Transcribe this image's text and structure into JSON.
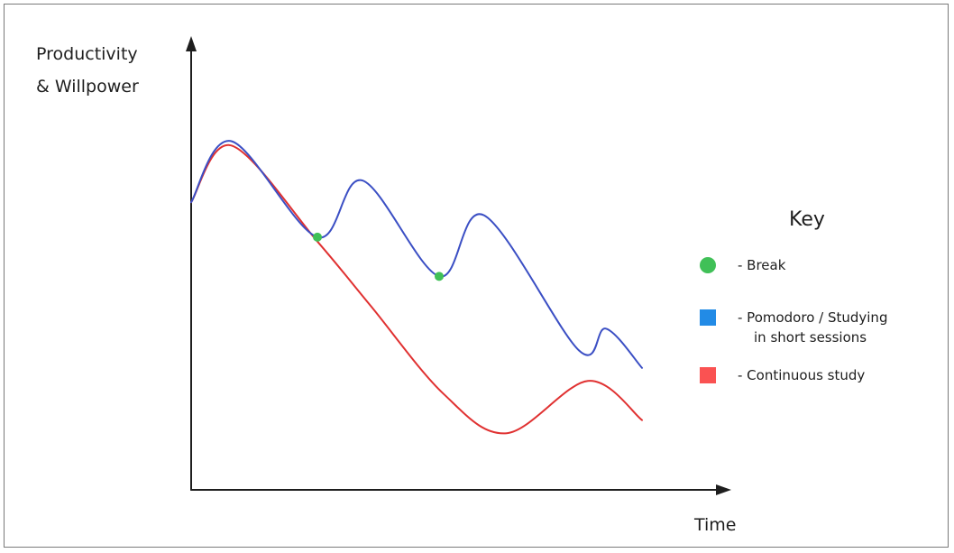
{
  "chart_data": {
    "type": "line",
    "ylabel_lines": [
      "Productivity",
      "& Willpower"
    ],
    "xlabel": "Time",
    "colors": {
      "axis": "#1e1e1e",
      "pomodoro": "#3b4fc4",
      "continuous": "#e03131",
      "break": "#40c057",
      "pomodoro_key": "#228be6",
      "continuous_key": "#fa5252"
    },
    "series": [
      {
        "key": "pomodoro",
        "points": [
          [
            0,
            6.6
          ],
          [
            0.45,
            8.0
          ],
          [
            1.4,
            5.8
          ],
          [
            1.9,
            7.1
          ],
          [
            2.75,
            4.9
          ],
          [
            3.25,
            6.3
          ],
          [
            4.3,
            3.2
          ],
          [
            4.6,
            3.7
          ],
          [
            5.0,
            2.8
          ]
        ]
      },
      {
        "key": "continuous",
        "points": [
          [
            0,
            6.6
          ],
          [
            0.45,
            7.9
          ],
          [
            1.4,
            5.7
          ],
          [
            2.0,
            4.2
          ],
          [
            2.8,
            2.2
          ],
          [
            3.5,
            1.3
          ],
          [
            4.4,
            2.5
          ],
          [
            5.0,
            1.6
          ]
        ]
      }
    ],
    "breaks": [
      [
        1.4,
        5.8
      ],
      [
        2.75,
        4.9
      ]
    ],
    "xlim": [
      0,
      5
    ],
    "ylim": [
      0,
      10
    ],
    "legend": {
      "title": "Key",
      "items": [
        {
          "marker": "circle",
          "color_key": "break",
          "lines": [
            "- Break"
          ]
        },
        {
          "marker": "square",
          "color_key": "pomodoro_key",
          "lines": [
            "- Pomodoro / Studying",
            "in short sessions"
          ]
        },
        {
          "marker": "square",
          "color_key": "continuous_key",
          "lines": [
            "- Continuous study"
          ]
        }
      ]
    }
  }
}
